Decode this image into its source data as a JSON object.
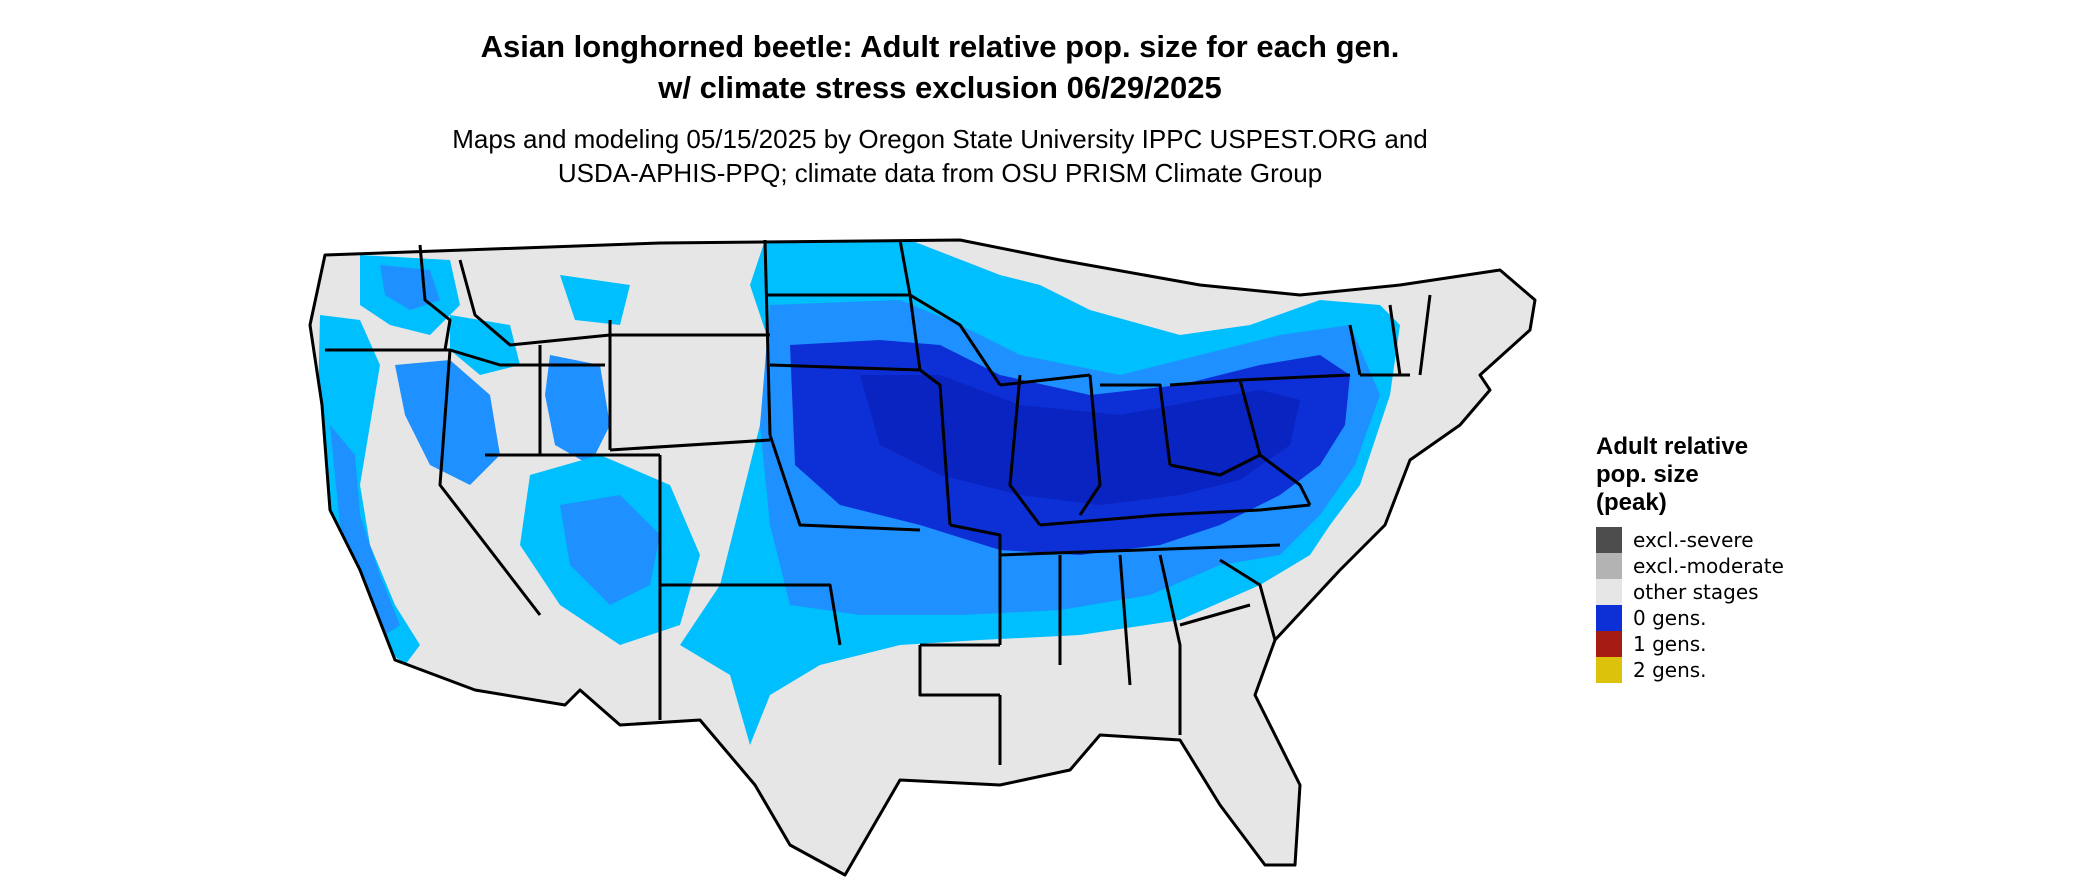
{
  "title_line1": "Asian longhorned beetle: Adult relative pop. size for each gen.",
  "title_line2": "w/ climate stress exclusion 06/29/2025",
  "subtitle_line1": "Maps and modeling 05/15/2025 by Oregon State University IPPC USPEST.ORG and",
  "subtitle_line2": "USDA-APHIS-PPQ; climate data from OSU PRISM Climate Group",
  "legend": {
    "title_line1": "Adult relative",
    "title_line2": "pop. size",
    "title_line3": "(peak)",
    "items": [
      {
        "label": "excl.-severe",
        "color": "#4d4d4d"
      },
      {
        "label": "excl.-moderate",
        "color": "#b3b3b3"
      },
      {
        "label": "other stages",
        "color": "#e6e6e6"
      },
      {
        "label": "0 gens.",
        "color": "#0d2fd6"
      },
      {
        "label": "1 gens.",
        "color": "#a61c12"
      },
      {
        "label": "2 gens.",
        "color": "#dcc20a"
      }
    ]
  },
  "map_colors": {
    "background": "#e6e6e6",
    "light_blue": "#00bfff",
    "mid_blue": "#1e90ff",
    "dark_blue": "#0d2fd6",
    "deep_blue": "#0a20b8",
    "border": "#000000"
  }
}
